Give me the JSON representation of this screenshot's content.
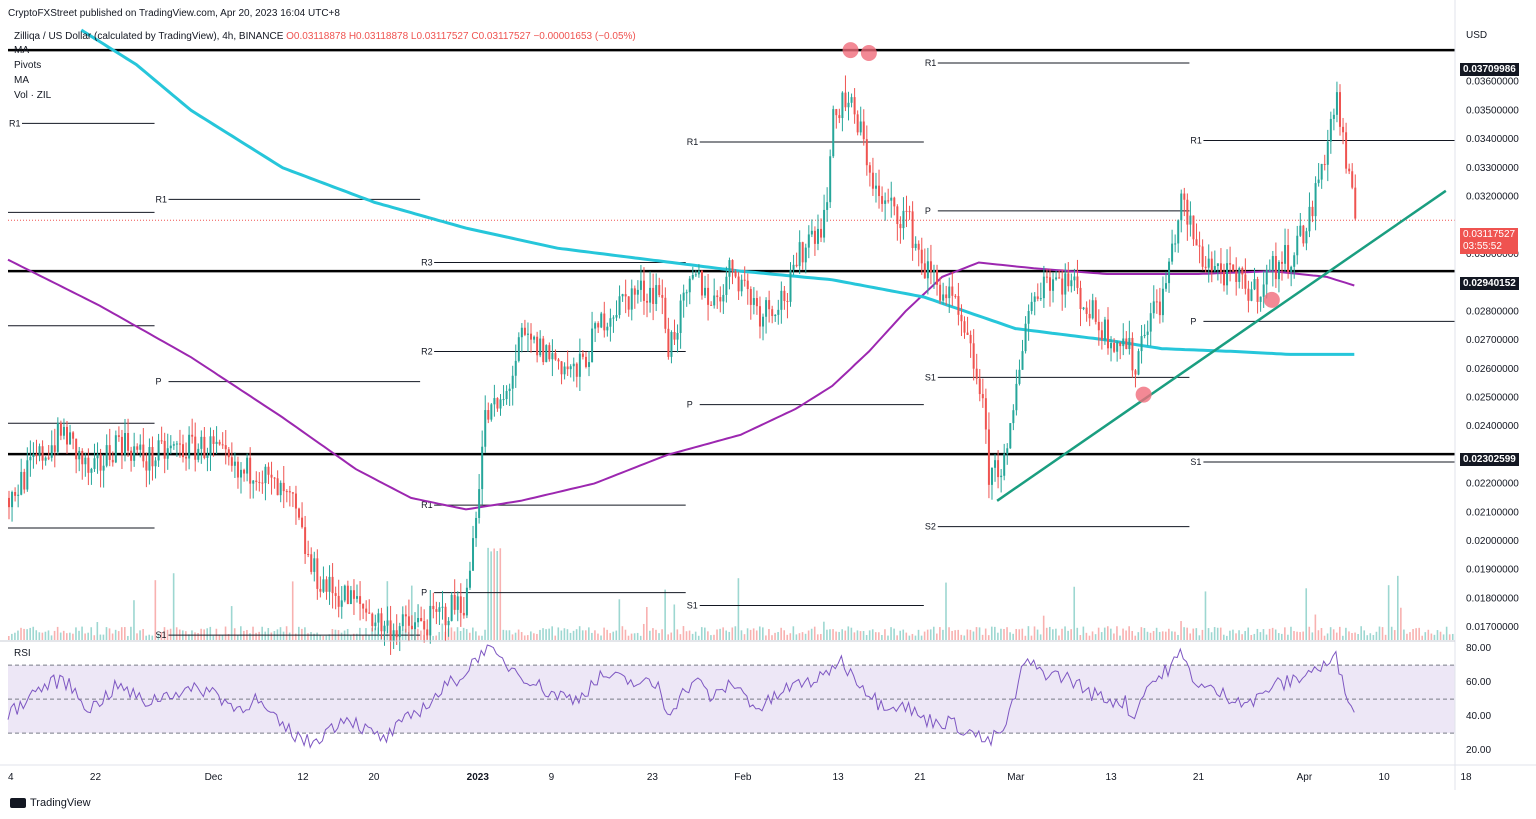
{
  "header": {
    "published": "CryptoFXStreet published on TradingView.com, Apr 20, 2023 16:04 UTC+8",
    "symbol": "Zilliqa / US Dollar (calculated by TradingView), 4h, BINANCE",
    "ohlc_o": "O0.03118878",
    "ohlc_h": "H0.03118878",
    "ohlc_l": "L0.03117527",
    "ohlc_c": "C0.03117527",
    "change": "−0.00001653 (−0.05%)"
  },
  "indicators": [
    "MA",
    "Pivots",
    "MA",
    "Vol · ZIL"
  ],
  "rsi_label": "RSI",
  "footer": {
    "brand": "TradingView"
  },
  "colors": {
    "up": "#26a69a",
    "down": "#ef5350",
    "ma_fast": "#9c27b0",
    "ma_slow": "#26c6da",
    "trendline": "#1a9e80",
    "rsi": "#7e57c2",
    "rsi_band": "#ede7f6",
    "marker": "#f06b7a"
  },
  "chart_data": [
    {
      "type": "candlestick",
      "currency": "USD",
      "price_axis": [
        "0.03600000",
        "0.03500000",
        "0.03400000",
        "0.03300000",
        "0.03200000",
        "0.03000000",
        "0.02800000",
        "0.02700000",
        "0.02600000",
        "0.02500000",
        "0.02400000",
        "0.02200000",
        "0.02100000",
        "0.02000000",
        "0.01900000",
        "0.01800000",
        "0.01700000"
      ],
      "time_axis": [
        "4",
        "22",
        "Dec",
        "12",
        "20",
        "2023",
        "9",
        "23",
        "Feb",
        "13",
        "21",
        "Mar",
        "13",
        "21",
        "Apr",
        "10",
        "18"
      ],
      "ylim": [
        0.01655,
        0.03815
      ],
      "horizontal_levels": [
        {
          "value": 0.03709986,
          "label": "0.03709986"
        },
        {
          "value": 0.02940152,
          "label": "0.02940152"
        },
        {
          "value": 0.02302599,
          "label": "0.02302599"
        }
      ],
      "last_price": {
        "value": 0.03117527,
        "label": "0.03117527",
        "countdown": "03:55:52"
      },
      "price_path": [
        [
          0,
          0.0215
        ],
        [
          3,
          0.0228
        ],
        [
          6,
          0.0238
        ],
        [
          9,
          0.0222
        ],
        [
          12,
          0.0236
        ],
        [
          15,
          0.0228
        ],
        [
          18,
          0.0232
        ],
        [
          22,
          0.0233
        ],
        [
          25,
          0.0222
        ],
        [
          27,
          0.0226
        ],
        [
          29,
          0.0218
        ],
        [
          31,
          0.0212
        ],
        [
          33,
          0.019
        ],
        [
          35,
          0.0183
        ],
        [
          37,
          0.018
        ],
        [
          39,
          0.0176
        ],
        [
          41,
          0.017
        ],
        [
          44,
          0.017
        ],
        [
          46,
          0.0172
        ],
        [
          48,
          0.0176
        ],
        [
          50,
          0.018
        ],
        [
          52,
          0.0243
        ],
        [
          54,
          0.0248
        ],
        [
          56,
          0.027
        ],
        [
          59,
          0.0265
        ],
        [
          62,
          0.0258
        ],
        [
          65,
          0.0278
        ],
        [
          68,
          0.0286
        ],
        [
          71,
          0.0288
        ],
        [
          72,
          0.0268
        ],
        [
          75,
          0.0292
        ],
        [
          77,
          0.0283
        ],
        [
          79,
          0.0296
        ],
        [
          82,
          0.028
        ],
        [
          85,
          0.0286
        ],
        [
          87,
          0.0305
        ],
        [
          89,
          0.0312
        ],
        [
          90,
          0.0345
        ],
        [
          91,
          0.0355
        ],
        [
          92,
          0.035
        ],
        [
          93,
          0.0342
        ],
        [
          95,
          0.0318
        ],
        [
          98,
          0.0313
        ],
        [
          100,
          0.0295
        ],
        [
          103,
          0.0283
        ],
        [
          106,
          0.0255
        ],
        [
          107,
          0.0224
        ],
        [
          109,
          0.0228
        ],
        [
          111,
          0.0278
        ],
        [
          113,
          0.0292
        ],
        [
          116,
          0.029
        ],
        [
          118,
          0.028
        ],
        [
          120,
          0.0272
        ],
        [
          122,
          0.0269
        ],
        [
          123,
          0.026
        ],
        [
          124,
          0.0276
        ],
        [
          126,
          0.0285
        ],
        [
          128,
          0.0318
        ],
        [
          130,
          0.03
        ],
        [
          133,
          0.0292
        ],
        [
          136,
          0.0287
        ],
        [
          138,
          0.0295
        ],
        [
          140,
          0.03
        ],
        [
          142,
          0.0312
        ],
        [
          144,
          0.034
        ],
        [
          145,
          0.0355
        ],
        [
          146,
          0.033
        ],
        [
          147,
          0.0312
        ]
      ],
      "ma_fast_path": [
        [
          0,
          0.0298
        ],
        [
          10,
          0.0282
        ],
        [
          20,
          0.0264
        ],
        [
          30,
          0.0243
        ],
        [
          38,
          0.0225
        ],
        [
          44,
          0.0215
        ],
        [
          50,
          0.0211
        ],
        [
          56,
          0.0214
        ],
        [
          64,
          0.022
        ],
        [
          72,
          0.023
        ],
        [
          80,
          0.0237
        ],
        [
          86,
          0.0246
        ],
        [
          90,
          0.0254
        ],
        [
          94,
          0.0266
        ],
        [
          98,
          0.028
        ],
        [
          102,
          0.0292
        ],
        [
          106,
          0.0297
        ],
        [
          112,
          0.0295
        ],
        [
          120,
          0.0293
        ],
        [
          130,
          0.0293
        ],
        [
          138,
          0.0294
        ],
        [
          144,
          0.0292
        ],
        [
          147,
          0.0289
        ]
      ],
      "ma_slow_path": [
        [
          8,
          0.0378
        ],
        [
          14,
          0.0366
        ],
        [
          20,
          0.035
        ],
        [
          30,
          0.033
        ],
        [
          40,
          0.0318
        ],
        [
          50,
          0.0309
        ],
        [
          60,
          0.0302
        ],
        [
          70,
          0.0298
        ],
        [
          80,
          0.0294
        ],
        [
          90,
          0.0291
        ],
        [
          100,
          0.0285
        ],
        [
          110,
          0.0274
        ],
        [
          120,
          0.027
        ],
        [
          126,
          0.0267
        ],
        [
          134,
          0.0266
        ],
        [
          140,
          0.0265
        ],
        [
          147,
          0.0265
        ]
      ],
      "trendline": {
        "from": [
          108,
          0.0214
        ],
        "to": [
          157,
          0.0322
        ]
      },
      "markers": [
        [
          92,
          0.0371
        ],
        [
          94,
          0.037
        ],
        [
          124,
          0.0251
        ],
        [
          138,
          0.0284
        ]
      ],
      "pivot_levels": [
        {
          "label": "R1",
          "value": 0.03455,
          "x0": 0,
          "x1": 16
        },
        {
          "label": "R1",
          "value": 0.0319,
          "x0": 16,
          "x1": 45
        },
        {
          "label": "",
          "value": 0.03145,
          "x0": 0,
          "x1": 16
        },
        {
          "label": "R3",
          "value": 0.0297,
          "x0": 45,
          "x1": 74
        },
        {
          "label": "",
          "value": 0.0275,
          "x0": 0,
          "x1": 16
        },
        {
          "label": "R2",
          "value": 0.0266,
          "x0": 45,
          "x1": 74
        },
        {
          "label": "P",
          "value": 0.02555,
          "x0": 16,
          "x1": 45
        },
        {
          "label": "",
          "value": 0.0241,
          "x0": 0,
          "x1": 16
        },
        {
          "label": "",
          "value": 0.02045,
          "x0": 0,
          "x1": 16
        },
        {
          "label": "R1",
          "value": 0.02125,
          "x0": 45,
          "x1": 74
        },
        {
          "label": "P",
          "value": 0.0182,
          "x0": 45,
          "x1": 74
        },
        {
          "label": "S1",
          "value": 0.01672,
          "x0": 16,
          "x1": 45
        },
        {
          "label": "R1",
          "value": 0.0339,
          "x0": 74,
          "x1": 100
        },
        {
          "label": "P",
          "value": 0.02475,
          "x0": 74,
          "x1": 100
        },
        {
          "label": "S1",
          "value": 0.01775,
          "x0": 74,
          "x1": 100
        },
        {
          "label": "R1",
          "value": 0.03665,
          "x0": 100,
          "x1": 129
        },
        {
          "label": "P",
          "value": 0.0315,
          "x0": 100,
          "x1": 129
        },
        {
          "label": "S1",
          "value": 0.0257,
          "x0": 100,
          "x1": 129
        },
        {
          "label": "S2",
          "value": 0.0205,
          "x0": 100,
          "x1": 129
        },
        {
          "label": "R1",
          "value": 0.03395,
          "x0": 129,
          "x1": 158
        },
        {
          "label": "P",
          "value": 0.02765,
          "x0": 129,
          "x1": 158
        },
        {
          "label": "S1",
          "value": 0.02275,
          "x0": 129,
          "x1": 158
        }
      ]
    },
    {
      "type": "line",
      "ylabel": "RSI",
      "y_axis": [
        "80.00",
        "60.00",
        "40.00",
        "20.00"
      ],
      "ylim": [
        13,
        83
      ],
      "bands": [
        30,
        50,
        70
      ],
      "rsi_path": [
        [
          0,
          40
        ],
        [
          3,
          55
        ],
        [
          6,
          62
        ],
        [
          9,
          44
        ],
        [
          12,
          58
        ],
        [
          15,
          48
        ],
        [
          18,
          54
        ],
        [
          22,
          56
        ],
        [
          25,
          44
        ],
        [
          27,
          50
        ],
        [
          29,
          38
        ],
        [
          31,
          30
        ],
        [
          33,
          24
        ],
        [
          35,
          32
        ],
        [
          37,
          40
        ],
        [
          39,
          32
        ],
        [
          41,
          26
        ],
        [
          44,
          40
        ],
        [
          46,
          48
        ],
        [
          48,
          58
        ],
        [
          50,
          66
        ],
        [
          52,
          80
        ],
        [
          54,
          72
        ],
        [
          56,
          65
        ],
        [
          59,
          54
        ],
        [
          62,
          50
        ],
        [
          65,
          64
        ],
        [
          68,
          60
        ],
        [
          71,
          58
        ],
        [
          72,
          42
        ],
        [
          75,
          62
        ],
        [
          77,
          50
        ],
        [
          79,
          60
        ],
        [
          82,
          44
        ],
        [
          85,
          56
        ],
        [
          87,
          60
        ],
        [
          89,
          62
        ],
        [
          90,
          70
        ],
        [
          91,
          72
        ],
        [
          92,
          66
        ],
        [
          93,
          60
        ],
        [
          95,
          48
        ],
        [
          98,
          46
        ],
        [
          100,
          38
        ],
        [
          103,
          36
        ],
        [
          106,
          28
        ],
        [
          107,
          24
        ],
        [
          109,
          34
        ],
        [
          111,
          72
        ],
        [
          113,
          66
        ],
        [
          116,
          62
        ],
        [
          118,
          54
        ],
        [
          120,
          50
        ],
        [
          122,
          48
        ],
        [
          123,
          38
        ],
        [
          124,
          56
        ],
        [
          126,
          64
        ],
        [
          128,
          76
        ],
        [
          130,
          58
        ],
        [
          133,
          52
        ],
        [
          136,
          48
        ],
        [
          138,
          58
        ],
        [
          140,
          60
        ],
        [
          142,
          66
        ],
        [
          144,
          70
        ],
        [
          145,
          74
        ],
        [
          146,
          56
        ],
        [
          147,
          46
        ]
      ]
    }
  ]
}
